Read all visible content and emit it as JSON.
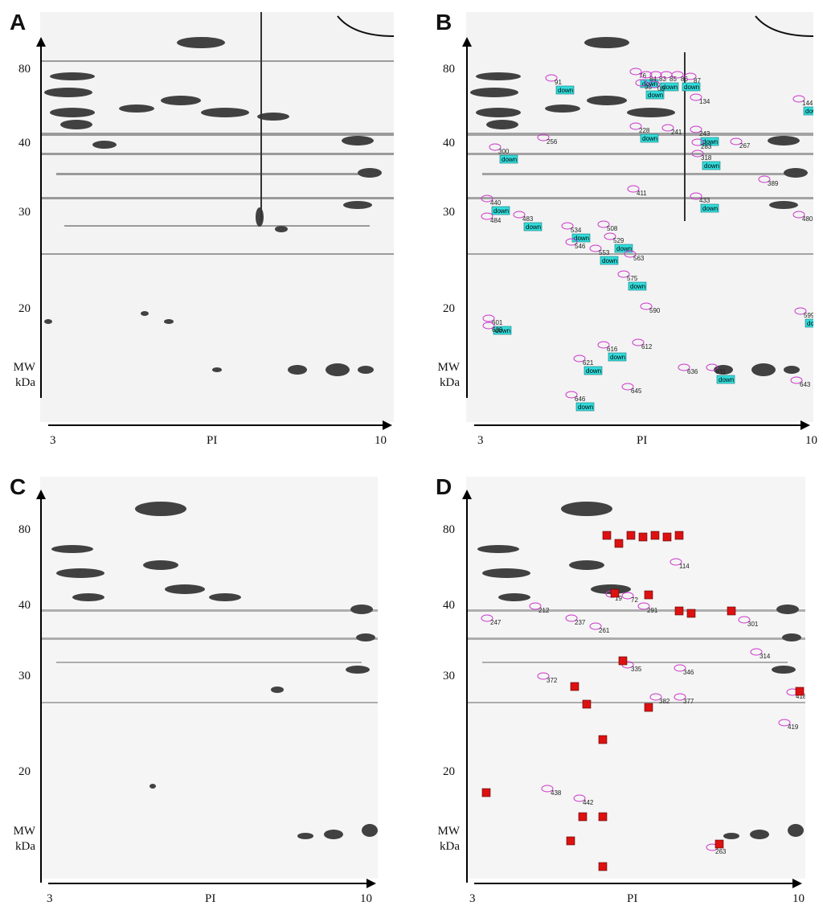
{
  "panels": [
    {
      "id": "A",
      "letter": "A",
      "y_ticks": [
        "80",
        "40",
        "30",
        "20"
      ],
      "mw_line1": "MW",
      "mw_line2": "kDa",
      "x_min": "3",
      "x_mid": "PI",
      "x_max": "10",
      "spot_labels": []
    },
    {
      "id": "B",
      "letter": "B",
      "y_ticks": [
        "80",
        "40",
        "30",
        "20"
      ],
      "mw_line1": "MW",
      "mw_line2": "kDa",
      "x_min": "3",
      "x_mid": "PI",
      "x_max": "10",
      "tag_text": "down",
      "spot_labels": [
        "76",
        "84",
        "83",
        "85",
        "86",
        "87",
        "95",
        "00",
        "91",
        "134",
        "144",
        "256",
        "228",
        "241",
        "243",
        "267",
        "300",
        "283",
        "318",
        "411",
        "433",
        "389",
        "440",
        "484",
        "483",
        "508",
        "529",
        "480",
        "534",
        "546",
        "553",
        "563",
        "575",
        "590",
        "601",
        "609",
        "616",
        "612",
        "621",
        "636",
        "631",
        "645",
        "646",
        "643",
        "599"
      ]
    },
    {
      "id": "C",
      "letter": "C",
      "y_ticks": [
        "80",
        "40",
        "30",
        "20"
      ],
      "mw_line1": "MW",
      "mw_line2": "kDa",
      "x_min": "3",
      "x_mid": "PI",
      "x_max": "10",
      "spot_labels": []
    },
    {
      "id": "D",
      "letter": "D",
      "y_ticks": [
        "80",
        "40",
        "30",
        "20"
      ],
      "mw_line1": "MW",
      "mw_line2": "kDa",
      "x_min": "3",
      "x_mid": "PI",
      "x_max": "10",
      "spot_labels": [
        "114",
        "212",
        "237",
        "247",
        "261",
        "19",
        "72",
        "291",
        "301",
        "314",
        "335",
        "346",
        "372",
        "377",
        "382",
        "418",
        "419",
        "438",
        "442",
        "263"
      ]
    }
  ]
}
